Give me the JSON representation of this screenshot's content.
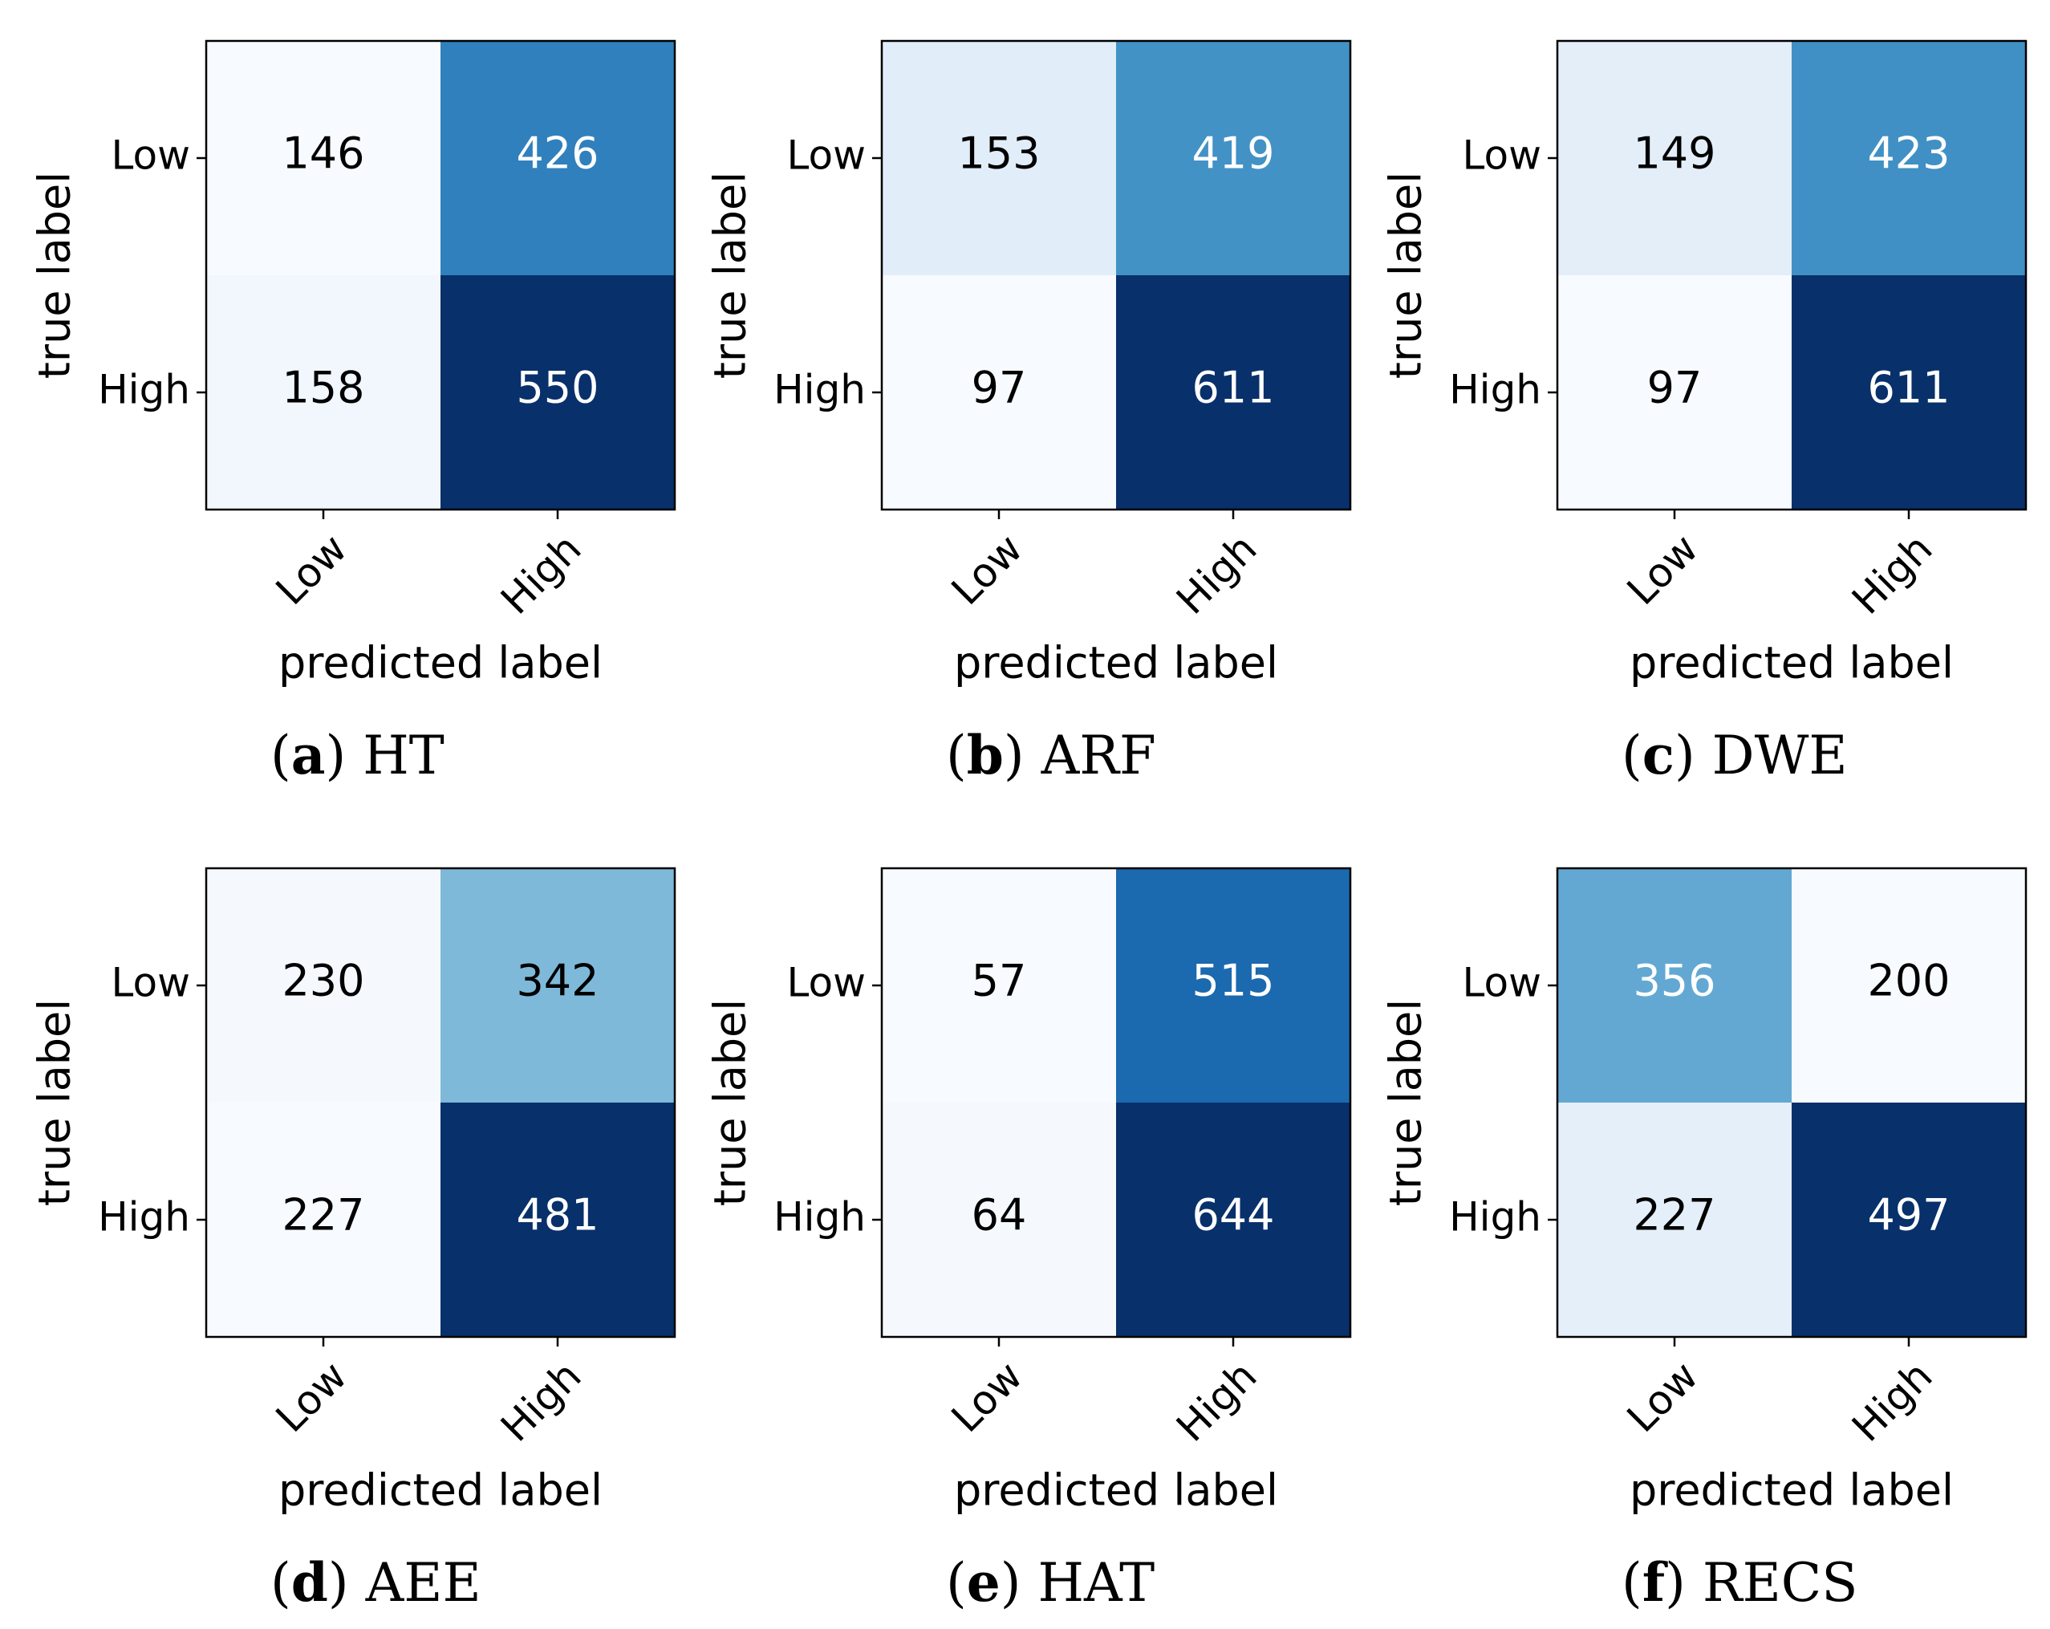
{
  "figure": {
    "colormap": [
      "#f7fbff",
      "#deebf7",
      "#c6dbef",
      "#9ecae1",
      "#6baed6",
      "#4292c6",
      "#2171b5",
      "#08519c",
      "#08306b"
    ]
  },
  "chart_data": [
    {
      "type": "heatmap",
      "subtitle_letter": "a",
      "title": "HT",
      "xlabel": "predicted label",
      "ylabel": "true label",
      "row_labels": [
        "Low",
        "High"
      ],
      "col_labels": [
        "Low",
        "High"
      ],
      "values": [
        [
          146,
          426
        ],
        [
          158,
          550
        ]
      ]
    },
    {
      "type": "heatmap",
      "subtitle_letter": "b",
      "title": "ARF",
      "xlabel": "predicted label",
      "ylabel": "true label",
      "row_labels": [
        "Low",
        "High"
      ],
      "col_labels": [
        "Low",
        "High"
      ],
      "values": [
        [
          153,
          419
        ],
        [
          97,
          611
        ]
      ]
    },
    {
      "type": "heatmap",
      "subtitle_letter": "c",
      "title": "DWE",
      "xlabel": "predicted label",
      "ylabel": "true label",
      "row_labels": [
        "Low",
        "High"
      ],
      "col_labels": [
        "Low",
        "High"
      ],
      "values": [
        [
          149,
          423
        ],
        [
          97,
          611
        ]
      ]
    },
    {
      "type": "heatmap",
      "subtitle_letter": "d",
      "title": "AEE",
      "xlabel": "predicted label",
      "ylabel": "true label",
      "row_labels": [
        "Low",
        "High"
      ],
      "col_labels": [
        "Low",
        "High"
      ],
      "values": [
        [
          230,
          342
        ],
        [
          227,
          481
        ]
      ]
    },
    {
      "type": "heatmap",
      "subtitle_letter": "e",
      "title": "HAT",
      "xlabel": "predicted label",
      "ylabel": "true label",
      "row_labels": [
        "Low",
        "High"
      ],
      "col_labels": [
        "Low",
        "High"
      ],
      "values": [
        [
          57,
          515
        ],
        [
          64,
          644
        ]
      ]
    },
    {
      "type": "heatmap",
      "subtitle_letter": "f",
      "title": "RECS",
      "xlabel": "predicted label",
      "ylabel": "true label",
      "row_labels": [
        "Low",
        "High"
      ],
      "col_labels": [
        "Low",
        "High"
      ],
      "values": [
        [
          356,
          200
        ],
        [
          227,
          497
        ]
      ]
    }
  ]
}
